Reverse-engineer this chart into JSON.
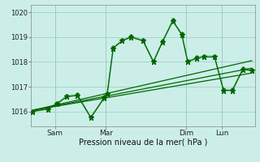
{
  "bg_color": "#cceee8",
  "grid_color": "#99ccbb",
  "line_color": "#006600",
  "ylim": [
    1015.4,
    1020.3
  ],
  "xlim": [
    0,
    7.5
  ],
  "xlabel": "Pression niveau de la mer( hPa )",
  "xtick_positions": [
    0.8,
    2.5,
    5.2,
    6.4
  ],
  "xtick_labels": [
    "Sam",
    "Mar",
    "Dim",
    "Lun"
  ],
  "ytick_positions": [
    1016,
    1017,
    1018,
    1019,
    1020
  ],
  "ytick_labels": [
    "1016",
    "1017",
    "1018",
    "1019",
    "1020"
  ],
  "trend1_x": [
    0.05,
    7.4
  ],
  "trend1_y": [
    1016.05,
    1017.55
  ],
  "trend2_x": [
    0.05,
    7.4
  ],
  "trend2_y": [
    1016.05,
    1017.75
  ],
  "trend3_x": [
    0.05,
    7.4
  ],
  "trend3_y": [
    1016.05,
    1018.05
  ],
  "main_x": [
    0.05,
    0.55,
    0.85,
    1.2,
    1.55,
    2.0,
    2.45,
    2.55,
    2.75,
    3.05,
    3.35,
    3.75,
    4.1,
    4.4,
    4.75,
    5.05,
    5.25,
    5.55,
    5.8,
    6.15,
    6.45,
    6.75,
    7.1,
    7.4
  ],
  "main_y": [
    1016.0,
    1016.1,
    1016.3,
    1016.6,
    1016.65,
    1015.75,
    1016.55,
    1016.7,
    1018.55,
    1018.85,
    1019.0,
    1018.85,
    1018.0,
    1018.8,
    1019.65,
    1019.1,
    1018.0,
    1018.15,
    1018.2,
    1018.2,
    1016.85,
    1016.85,
    1017.7,
    1017.65
  ],
  "dot_x": [
    0.05,
    0.55,
    0.85,
    1.2,
    1.55,
    2.0,
    2.45,
    2.55,
    2.75,
    3.05,
    3.35,
    3.75,
    4.1,
    4.4,
    4.75,
    5.05,
    5.25,
    5.55,
    5.8,
    6.15,
    6.45,
    6.75,
    7.1,
    7.4
  ],
  "dot_y": [
    1016.0,
    1016.15,
    1016.35,
    1016.65,
    1016.7,
    1015.8,
    1016.6,
    1016.75,
    1018.6,
    1018.9,
    1019.05,
    1018.9,
    1018.05,
    1018.85,
    1019.7,
    1019.15,
    1018.05,
    1018.2,
    1018.25,
    1018.25,
    1016.9,
    1016.9,
    1017.75,
    1017.7
  ]
}
